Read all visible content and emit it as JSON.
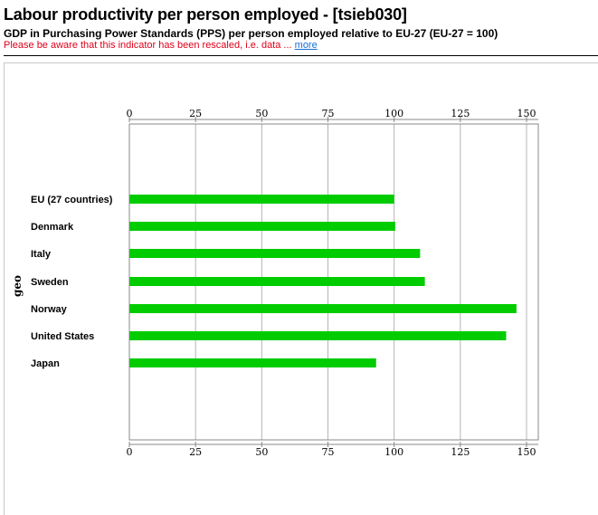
{
  "header": {
    "title": "Labour productivity per person employed - [tsieb030]",
    "subtitle": "GDP in Purchasing Power Standards (PPS) per person employed relative to EU-27 (EU-27 = 100)",
    "notice": "Please be aware that this indicator has been rescaled, i.e. data ...",
    "more_link": "more"
  },
  "colors": {
    "bar": "#00cc00",
    "notice": "#e0001a",
    "link": "#1a6fd6",
    "grid": "#b4b4b4"
  },
  "chart_data": {
    "type": "bar",
    "orientation": "horizontal",
    "categories": [
      "EU (27 countries)",
      "Denmark",
      "Italy",
      "Sweden",
      "Norway",
      "United States",
      "Japan"
    ],
    "values": [
      100,
      100.4,
      109.8,
      111.6,
      146.2,
      142.3,
      93.2
    ],
    "ylabel": "geo",
    "xlim": [
      0,
      150
    ],
    "xticks": [
      "0",
      "25",
      "50",
      "75",
      "100",
      "125",
      "150"
    ],
    "grid": true
  }
}
